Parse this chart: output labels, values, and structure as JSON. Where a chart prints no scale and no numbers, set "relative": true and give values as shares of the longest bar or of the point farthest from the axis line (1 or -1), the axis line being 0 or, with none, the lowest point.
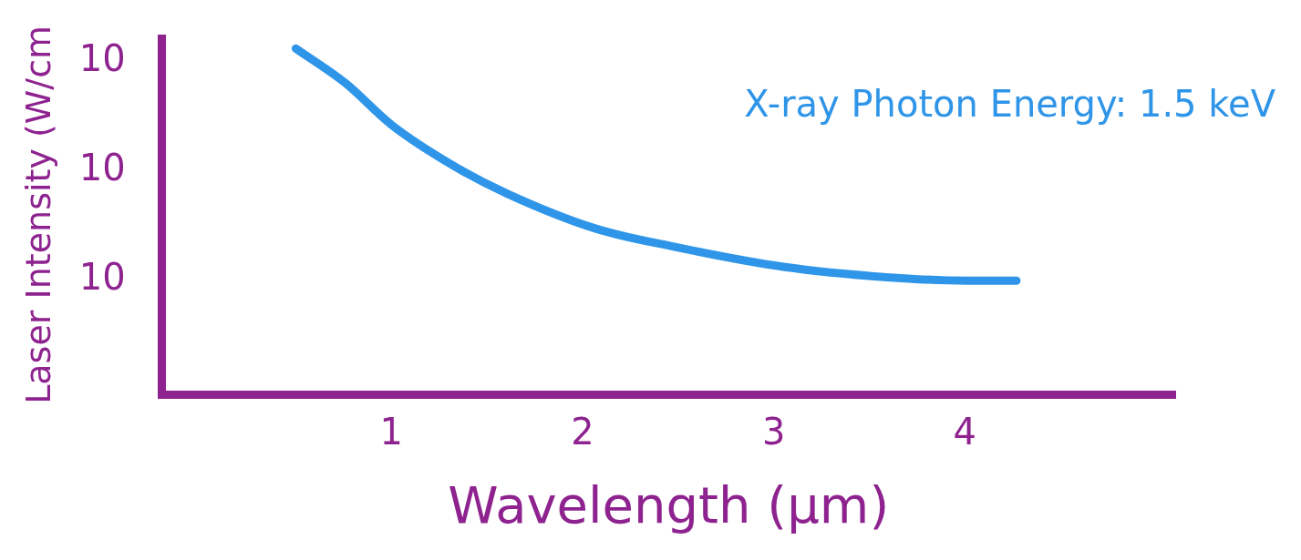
{
  "chart_data": {
    "type": "line",
    "relative": true,
    "xlabel": "Wavelength (µm)",
    "ylabel": "Laser Intensity (W/cm",
    "annotations": [
      "X-ray Photon Energy: 1.5 keV",
      "10",
      "10",
      "10"
    ],
    "xlim": [
      -0.2,
      5.1
    ],
    "xticks": [
      1,
      2,
      3,
      4
    ],
    "grid": false,
    "legend": false,
    "marker": "none",
    "line_style": "solid",
    "series": [
      {
        "color": "#2f95e8",
        "x": [
          0.5,
          0.76,
          1.0,
          1.33,
          1.61,
          2.07,
          2.46,
          3.05,
          3.59,
          4.01,
          4.27
        ],
        "values": [
          1.0,
          0.9,
          0.78,
          0.66,
          0.58,
          0.48,
          0.43,
          0.37,
          0.34,
          0.33,
          0.33
        ]
      }
    ]
  }
}
